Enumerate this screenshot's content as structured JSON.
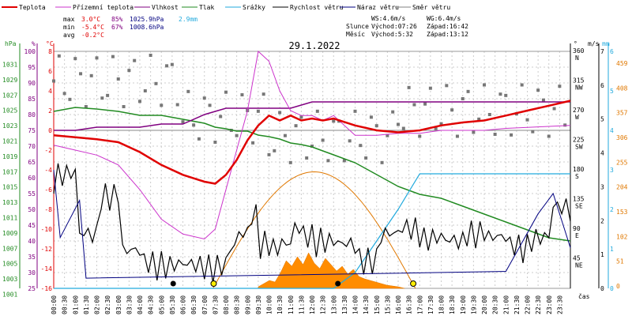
{
  "chart_data": {
    "type": "line",
    "title": "29.1.2022",
    "xlabel": "čas",
    "legend": [
      {
        "name": "Teplota",
        "color": "#e00000"
      },
      {
        "name": "Přízemní teplota",
        "color": "#cc33cc"
      },
      {
        "name": "Vlhkost",
        "color": "#800080"
      },
      {
        "name": "Tlak",
        "color": "#228b22"
      },
      {
        "name": "Srážky",
        "color": "#22aadd"
      },
      {
        "name": "Rychlost větru",
        "color": "#000000"
      },
      {
        "name": "Náraz větru",
        "color": "#000080"
      },
      {
        "name": "Směr větru",
        "color": "#808080"
      }
    ],
    "stats": {
      "max_label": "max",
      "max_t": "3.0°C",
      "max_h": "85%",
      "max_p": "1025.9hPa",
      "max_r": "2.9mm",
      "min_label": "min",
      "min_t": "-5.4°C",
      "min_h": "67%",
      "min_p": "1008.6hPa",
      "avg_label": "avg",
      "avg_t": "-0.2°C",
      "ws": "WS:4.6m/s",
      "wg": "WG:6.4m/s",
      "sun_label": "Slunce",
      "sun_rise": "Východ:07:26",
      "sun_set": "Západ:16:42",
      "moon_label": "Měsíc",
      "moon_rise": "Východ:5:32",
      "moon_set": "Západ:13:12"
    },
    "axis_units": {
      "hpa": "hPa",
      "pct": "%",
      "degc": "°C",
      "deg": "°",
      "ms": "m/s",
      "mm": "mm"
    },
    "axes": {
      "hpa": [
        "1031",
        "1029",
        "1027",
        "1025",
        "1023",
        "1021",
        "1019",
        "1017",
        "1015",
        "1013",
        "1011",
        "1009",
        "1007",
        "1005",
        "1003",
        "1001"
      ],
      "pct": [
        "100",
        "95",
        "90",
        "85",
        "80",
        "75",
        "70",
        "65",
        "60",
        "55",
        "50",
        "45",
        "40",
        "35",
        "30",
        "25"
      ],
      "temp": [
        "8",
        "6",
        "4",
        "2",
        "0",
        "-2",
        "-4",
        "-6",
        "-8",
        "-10",
        "-12",
        "-14",
        "-16"
      ],
      "dir": [
        "360 N",
        "315 NW",
        "270 W",
        "225 SW",
        "180 S",
        "135 SE",
        "90 E",
        "45 NE"
      ],
      "ms": [
        "7",
        "6",
        "5",
        "4",
        "3",
        "2",
        "1",
        "0"
      ],
      "mm": [
        "6",
        "5",
        "4",
        "3",
        "2",
        "1",
        "0"
      ],
      "sol": [
        "459",
        "408",
        "357",
        "306",
        "255",
        "204",
        "153",
        "102",
        "51",
        "0"
      ]
    },
    "x_ticks": [
      "00:00",
      "00:30",
      "01:00",
      "01:30",
      "02:00",
      "02:30",
      "03:00",
      "03:30",
      "04:00",
      "04:30",
      "05:00",
      "05:30",
      "06:00",
      "06:30",
      "07:00",
      "07:30",
      "08:00",
      "08:30",
      "09:00",
      "09:30",
      "10:00",
      "10:30",
      "11:00",
      "11:30",
      "12:00",
      "12:30",
      "13:00",
      "13:30",
      "14:00",
      "14:30",
      "15:00",
      "15:30",
      "16:00",
      "16:30",
      "17:00",
      "17:30",
      "18:00",
      "18:30",
      "19:00",
      "19:30",
      "20:00",
      "20:30",
      "21:00",
      "21:30",
      "22:00",
      "22:30",
      "23:00",
      "23:30"
    ],
    "x_hours": [
      0,
      1,
      2,
      3,
      4,
      5,
      6,
      7,
      7.5,
      8,
      8.5,
      9,
      9.5,
      10,
      10.5,
      11,
      11.5,
      12,
      12.5,
      13,
      14,
      15,
      16,
      17,
      18,
      19,
      20,
      21,
      22,
      23,
      24
    ],
    "temperature_c": [
      -0.5,
      -0.7,
      -0.9,
      -1.2,
      -2.2,
      -3.5,
      -4.5,
      -5.2,
      -5.4,
      -4.5,
      -3.0,
      -1.0,
      0.5,
      1.5,
      1.0,
      1.5,
      1.0,
      1.2,
      1.0,
      1.2,
      0.5,
      0.0,
      -0.2,
      0.0,
      0.5,
      0.8,
      1.0,
      1.5,
      2.0,
      2.5,
      3.0
    ],
    "ground_temp_c": [
      -1.5,
      -2.0,
      -2.5,
      -3.5,
      -6.0,
      -9.0,
      -10.5,
      -11.0,
      -10.0,
      -6.0,
      -2.0,
      2.0,
      8.0,
      7.0,
      4.0,
      2.0,
      1.5,
      1.5,
      1.0,
      1.5,
      -0.5,
      -0.5,
      -0.3,
      -0.3,
      0.0,
      0.0,
      0.0,
      0.2,
      0.3,
      0.4,
      0.5
    ],
    "humidity_pct": [
      75,
      75,
      76,
      76,
      76,
      77,
      77,
      80,
      81,
      82,
      82,
      82,
      82,
      82,
      82,
      82,
      83,
      84,
      84,
      84,
      84,
      84,
      84,
      84,
      84,
      84,
      84,
      84,
      84,
      84,
      84
    ],
    "pressure_hpa": [
      1025.0,
      1025.5,
      1025.3,
      1025.0,
      1024.5,
      1024.5,
      1024.0,
      1023.5,
      1023.0,
      1022.8,
      1022.5,
      1022.5,
      1022.0,
      1021.8,
      1021.5,
      1021.0,
      1020.8,
      1020.5,
      1020.0,
      1019.5,
      1018.5,
      1017.0,
      1015.5,
      1014.5,
      1014.0,
      1013.0,
      1012.0,
      1011.0,
      1010.0,
      1009.0,
      1008.6
    ],
    "precip_mm": [
      0,
      0,
      0,
      0,
      0,
      0,
      0,
      0,
      0,
      0,
      0,
      0,
      0,
      0,
      0,
      0,
      0,
      0,
      0,
      0,
      0.4,
      1.2,
      2.0,
      2.9,
      2.9,
      2.9,
      2.9,
      2.9,
      2.9,
      2.9,
      2.9
    ],
    "solar_max": 240,
    "wind_ms": [
      2.8,
      1.0,
      2.2,
      0.5,
      0.2,
      0.1,
      0.1,
      0.1,
      0.1,
      0.6,
      1.0,
      1.6,
      0.8,
      0.6,
      0.7,
      1.2,
      1.0,
      0.9,
      0.8,
      0.7,
      0.3,
      1.0,
      1.2,
      0.9,
      0.8,
      1.1,
      0.9,
      0.7,
      0.9,
      1.8,
      1.0
    ]
  }
}
